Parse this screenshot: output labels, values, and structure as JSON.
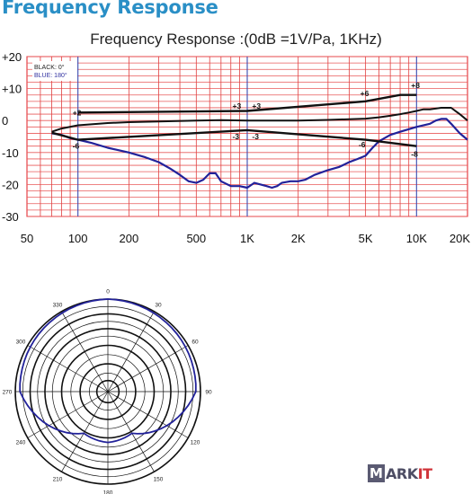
{
  "header": {
    "title": "Frequency Response"
  },
  "chart_data": [
    {
      "type": "line",
      "title": "Frequency Response :(0dB =1V/Pa, 1KHz)",
      "x_scale": "log",
      "xlim": [
        50,
        20000
      ],
      "ylim": [
        -30,
        20
      ],
      "x_ticks": [
        50,
        100,
        200,
        500,
        1000,
        2000,
        5000,
        10000,
        20000
      ],
      "x_tick_labels": [
        "50",
        "100",
        "200",
        "500",
        "1K",
        "2K",
        "5K",
        "10K",
        "20K"
      ],
      "y_ticks": [
        20,
        10,
        0,
        -10,
        -20,
        -30
      ],
      "y_tick_labels": [
        "+20",
        "+10",
        "0",
        "-10",
        "-20",
        "-30"
      ],
      "grid": true,
      "legend": [
        "BLACK: 0°",
        "BLUE: 180°"
      ],
      "legend_position": "top-left",
      "series": [
        {
          "name": "BLACK: 0°",
          "color": "#111111",
          "x": [
            70,
            80,
            100,
            150,
            200,
            300,
            500,
            700,
            1000,
            2000,
            3000,
            5000,
            6000,
            7000,
            8000,
            9000,
            10000,
            11000,
            12000,
            14000,
            16000,
            18000,
            20000
          ],
          "y": [
            -3.5,
            -2.5,
            -1.5,
            -0.8,
            -0.5,
            -0.3,
            0,
            0.1,
            0,
            0,
            0.2,
            0.6,
            1,
            1.5,
            2,
            2.5,
            3,
            3.5,
            3.5,
            4,
            4,
            2,
            0
          ]
        },
        {
          "name": "BLUE: 180°",
          "color": "#22229a",
          "x": [
            70,
            80,
            90,
            100,
            120,
            150,
            200,
            250,
            300,
            350,
            400,
            450,
            500,
            550,
            600,
            650,
            700,
            800,
            900,
            1000,
            1100,
            1200,
            1300,
            1400,
            1500,
            1600,
            1800,
            2000,
            2200,
            2500,
            3000,
            3500,
            4000,
            4500,
            5000,
            5500,
            6000,
            7000,
            8000,
            10000,
            12000,
            13000,
            14000,
            15000,
            16000,
            18000,
            20000
          ],
          "y": [
            -4,
            -4.5,
            -5.5,
            -6,
            -7,
            -8.5,
            -10,
            -11.5,
            -13,
            -15,
            -17,
            -19,
            -19.5,
            -18.5,
            -16.5,
            -16.5,
            -19,
            -20.5,
            -20.5,
            -21,
            -19.5,
            -20,
            -20.5,
            -21,
            -20.5,
            -19.5,
            -19,
            -19,
            -18.5,
            -17,
            -15.5,
            -14.5,
            -13,
            -12,
            -11,
            -8.5,
            -6.5,
            -4.5,
            -3.5,
            -2,
            -1,
            0,
            0.5,
            0.5,
            -1,
            -4,
            -6
          ]
        }
      ],
      "annotations": [
        {
          "label": "+2",
          "x": 100,
          "y": 2.5
        },
        {
          "label": "-6",
          "x": 100,
          "y": -8
        },
        {
          "label": "+3",
          "x": 880,
          "y": 4.5
        },
        {
          "label": "+3",
          "x": 1150,
          "y": 4.5
        },
        {
          "label": "-3",
          "x": 880,
          "y": -5
        },
        {
          "label": "-3",
          "x": 1150,
          "y": -5
        },
        {
          "label": "+6",
          "x": 5000,
          "y": 8.5
        },
        {
          "label": "+8",
          "x": 10000,
          "y": 11
        },
        {
          "label": "-6",
          "x": 4900,
          "y": -7.5
        },
        {
          "label": "-8",
          "x": 10000,
          "y": -10.5
        }
      ],
      "tolerance_limits": [
        {
          "kind": "upper",
          "x": [
            100,
            1000,
            5000,
            8000,
            10000
          ],
          "y": [
            2.5,
            3,
            6,
            8,
            8
          ]
        },
        {
          "kind": "lower",
          "x": [
            70,
            100,
            1000,
            5000,
            10000
          ],
          "y": [
            -3.8,
            -6,
            -3,
            -6,
            -8
          ]
        }
      ]
    },
    {
      "type": "polar",
      "angle_labels": [
        "0",
        "30",
        "60",
        "90",
        "120",
        "150",
        "180",
        "210",
        "240",
        "270",
        "300",
        "330"
      ],
      "series": [
        {
          "color": "#22229a",
          "pattern": "0°=1.0, 30°=0.99, 60°=0.97, 90°=0.95, 120°=0.8, 150°=0.52, 180°=0.55, 210°=0.52, 240°=0.8, 270°=0.95, 300°=0.97, 330°=0.99"
        }
      ]
    }
  ],
  "logo": {
    "m": "M",
    "rest": "ARK",
    "it": "IT"
  }
}
